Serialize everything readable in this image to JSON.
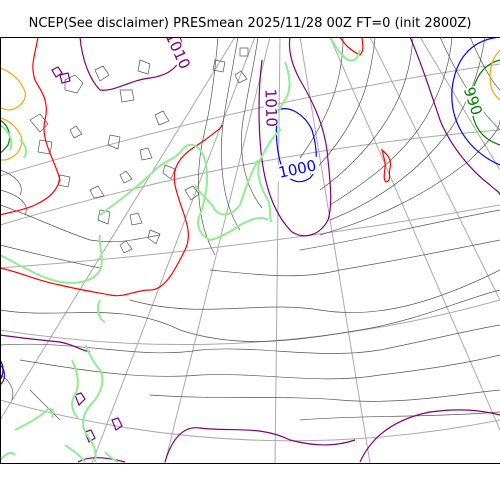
{
  "title": "NCEP(See disclaimer) PRESmean 2025/11/28 00Z FT=0 (init 2800Z)",
  "contour_labels": [
    {
      "text": "1010",
      "color": "#800080"
    },
    {
      "text": "1010",
      "color": "#800080"
    },
    {
      "text": "1000",
      "color": "#0000ff"
    },
    {
      "text": "990",
      "color": "#008000"
    }
  ],
  "colors": {
    "isobar": "#555555",
    "isobar_1010": "#800080",
    "isobar_1000": "#0000ff",
    "isobar_990": "#008000",
    "isobar_1020": "#ff0000",
    "isobar_low": "#ffa500",
    "coastline": "#90ee90",
    "graticule": "#aaaaaa",
    "frame": "#000000"
  }
}
